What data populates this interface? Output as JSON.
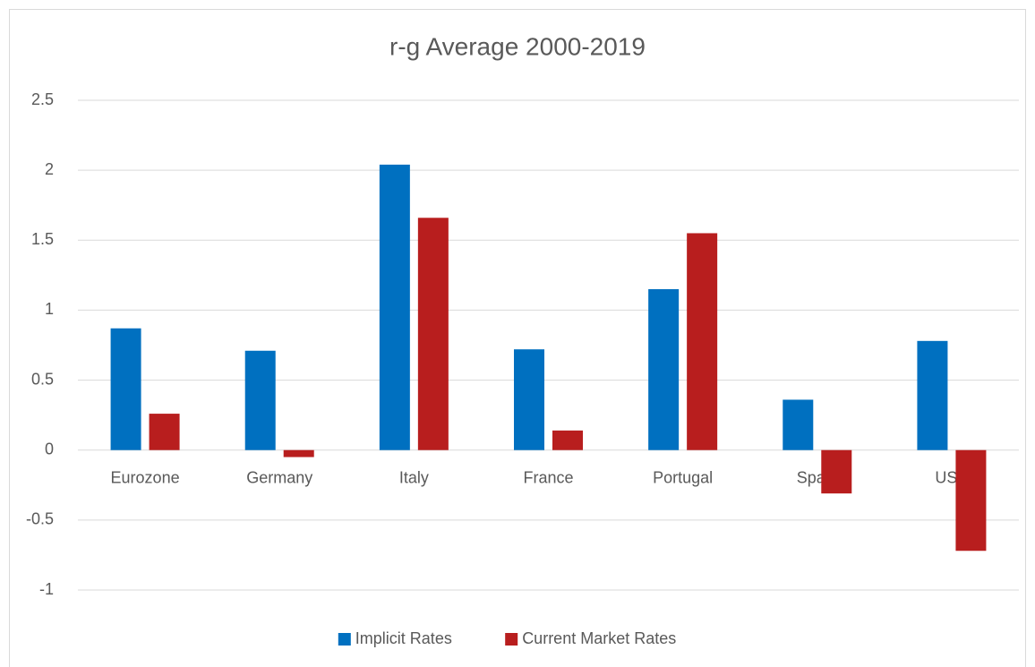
{
  "chart_data": {
    "type": "bar",
    "title": "r-g Average 2000-2019",
    "categories": [
      "Eurozone",
      "Germany",
      "Italy",
      "France",
      "Portugal",
      "Spain",
      "USA"
    ],
    "series": [
      {
        "name": "Implicit Rates",
        "color": "#0070c0",
        "values": [
          0.87,
          0.71,
          2.04,
          0.72,
          1.15,
          0.36,
          0.78
        ]
      },
      {
        "name": "Current Market Rates",
        "color": "#b81e1e",
        "values": [
          0.26,
          -0.05,
          1.66,
          0.14,
          1.55,
          -0.31,
          -0.72
        ]
      }
    ],
    "ylim": [
      -1,
      2.5
    ],
    "yticks": [
      -1,
      -0.5,
      0,
      0.5,
      1,
      1.5,
      2,
      2.5
    ],
    "grid": true,
    "legend": "bottom"
  }
}
